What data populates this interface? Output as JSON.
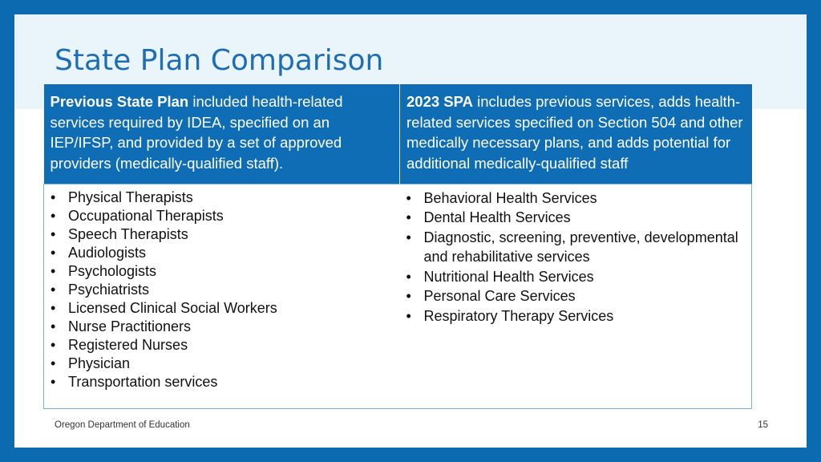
{
  "slide": {
    "title": "State Plan Comparison",
    "footer_org": "Oregon Department of Education",
    "page_number": "15"
  },
  "comparison": {
    "previous": {
      "heading_bold": "Previous State Plan",
      "heading_text": " included health-related services required by IDEA, specified on an IEP/IFSP, and provided by a set of approved providers (medically-qualified staff).",
      "items": [
        "Physical Therapists",
        "Occupational Therapists",
        "Speech Therapists",
        "Audiologists",
        "Psychologists",
        "Psychiatrists",
        "Licensed Clinical Social Workers",
        "Nurse Practitioners",
        "Registered Nurses",
        "Physician",
        "Transportation services"
      ]
    },
    "spa2023": {
      "heading_bold": "2023 SPA",
      "heading_text": " includes previous services, adds health-related services specified on Section 504 and other medically necessary plans, and adds potential for additional medically-qualified staff",
      "items": [
        "Behavioral Health Services",
        "Dental Health Services",
        "Diagnostic, screening, preventive, developmental and rehabilitative services",
        "Nutritional Health Services",
        "Personal Care Services",
        "Respiratory Therapy Services"
      ]
    }
  }
}
